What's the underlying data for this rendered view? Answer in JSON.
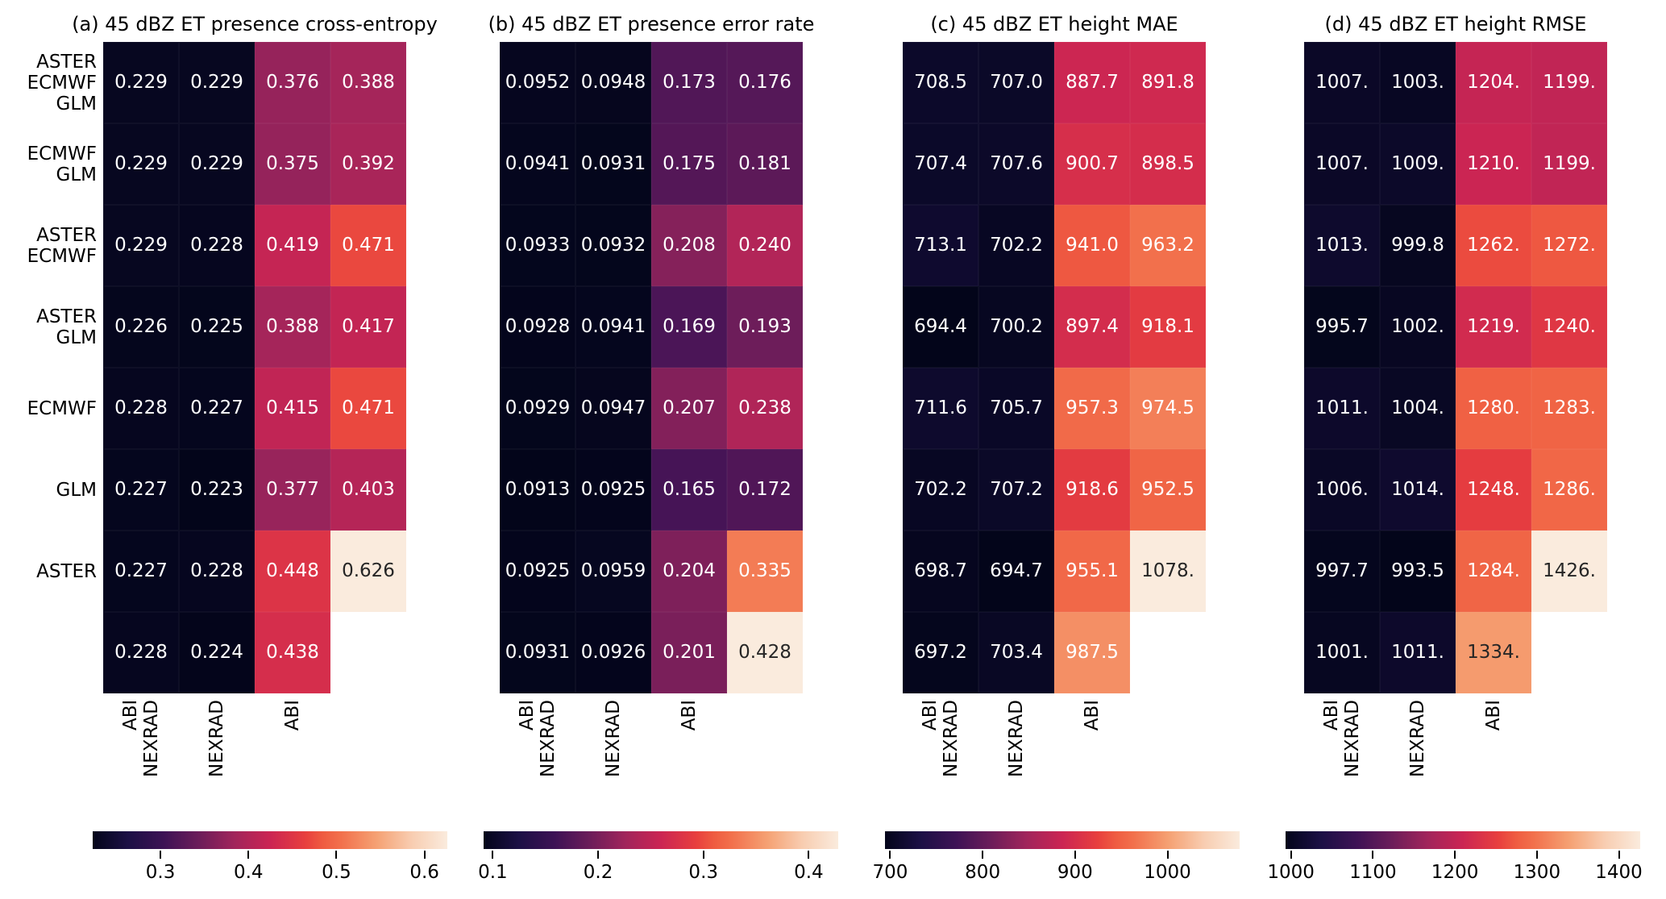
{
  "figure": {
    "background": "#ffffff",
    "text_color": "#000000",
    "colormap": {
      "name": "rocket",
      "stops": [
        {
          "t": 0.0,
          "color": "#03051A"
        },
        {
          "t": 0.1,
          "color": "#1C1045"
        },
        {
          "t": 0.2,
          "color": "#3D1255"
        },
        {
          "t": 0.3,
          "color": "#6C1D5A"
        },
        {
          "t": 0.4,
          "color": "#A1255B"
        },
        {
          "t": 0.5,
          "color": "#CB2553"
        },
        {
          "t": 0.6,
          "color": "#E83F3E"
        },
        {
          "t": 0.65,
          "color": "#EF5C41"
        },
        {
          "t": 0.7,
          "color": "#F2704C"
        },
        {
          "t": 0.8,
          "color": "#F5A173"
        },
        {
          "t": 0.9,
          "color": "#F8CDB1"
        },
        {
          "t": 1.0,
          "color": "#FAEBDD"
        }
      ],
      "annotation_dark": "#262626",
      "annotation_light": "#FFFFFF"
    }
  },
  "chart_data": [
    {
      "type": "heatmap",
      "title": "(a) 45 dBZ ET presence cross-entropy",
      "row_labels": [
        "ASTER\nECMWF\nGLM",
        "ECMWF\nGLM",
        "ASTER\nECMWF",
        "ASTER\nGLM",
        "ECMWF",
        "GLM",
        "ASTER",
        ""
      ],
      "col_labels": [
        "ABI\nNEXRAD",
        "NEXRAD",
        "ABI",
        ""
      ],
      "cells": [
        [
          "0.229",
          "0.229",
          "0.376",
          "0.388"
        ],
        [
          "0.229",
          "0.229",
          "0.375",
          "0.392"
        ],
        [
          "0.229",
          "0.228",
          "0.419",
          "0.471"
        ],
        [
          "0.226",
          "0.225",
          "0.388",
          "0.417"
        ],
        [
          "0.228",
          "0.227",
          "0.415",
          "0.471"
        ],
        [
          "0.227",
          "0.223",
          "0.377",
          "0.403"
        ],
        [
          "0.227",
          "0.228",
          "0.448",
          "0.626"
        ],
        [
          "0.228",
          "0.224",
          "0.438",
          null
        ]
      ],
      "colorbar_ticks": [
        "0.3",
        "0.4",
        "0.5",
        "0.6"
      ]
    },
    {
      "type": "heatmap",
      "title": "(b) 45 dBZ ET presence error rate",
      "col_labels": [
        "ABI\nNEXRAD",
        "NEXRAD",
        "ABI",
        ""
      ],
      "cells": [
        [
          "0.0952",
          "0.0948",
          "0.173",
          "0.176"
        ],
        [
          "0.0941",
          "0.0931",
          "0.175",
          "0.181"
        ],
        [
          "0.0933",
          "0.0932",
          "0.208",
          "0.240"
        ],
        [
          "0.0928",
          "0.0941",
          "0.169",
          "0.193"
        ],
        [
          "0.0929",
          "0.0947",
          "0.207",
          "0.238"
        ],
        [
          "0.0913",
          "0.0925",
          "0.165",
          "0.172"
        ],
        [
          "0.0925",
          "0.0959",
          "0.204",
          "0.335"
        ],
        [
          "0.0931",
          "0.0926",
          "0.201",
          "0.428"
        ]
      ],
      "colorbar_ticks": [
        "0.1",
        "0.2",
        "0.3",
        "0.4"
      ]
    },
    {
      "type": "heatmap",
      "title": "(c) 45 dBZ ET height MAE",
      "col_labels": [
        "ABI\nNEXRAD",
        "NEXRAD",
        "ABI",
        ""
      ],
      "cells": [
        [
          "708.5",
          "707.0",
          "887.7",
          "891.8"
        ],
        [
          "707.4",
          "707.6",
          "900.7",
          "898.5"
        ],
        [
          "713.1",
          "702.2",
          "941.0",
          "963.2"
        ],
        [
          "694.4",
          "700.2",
          "897.4",
          "918.1"
        ],
        [
          "711.6",
          "705.7",
          "957.3",
          "974.5"
        ],
        [
          "702.2",
          "707.2",
          "918.6",
          "952.5"
        ],
        [
          "698.7",
          "694.7",
          "955.1",
          "1078."
        ],
        [
          "697.2",
          "703.4",
          "987.5",
          null
        ]
      ],
      "colorbar_ticks": [
        "700",
        "800",
        "900",
        "1000"
      ]
    },
    {
      "type": "heatmap",
      "title": "(d) 45 dBZ ET height RMSE",
      "col_labels": [
        "ABI\nNEXRAD",
        "NEXRAD",
        "ABI",
        ""
      ],
      "cells": [
        [
          "1007.",
          "1003.",
          "1204.",
          "1199."
        ],
        [
          "1007.",
          "1009.",
          "1210.",
          "1199."
        ],
        [
          "1013.",
          "999.8",
          "1262.",
          "1272."
        ],
        [
          "995.7",
          "1002.",
          "1219.",
          "1240."
        ],
        [
          "1011.",
          "1004.",
          "1280.",
          "1283."
        ],
        [
          "1006.",
          "1014.",
          "1248.",
          "1286."
        ],
        [
          "997.7",
          "993.5",
          "1284.",
          "1426."
        ],
        [
          "1001.",
          "1011.",
          "1334.",
          null
        ]
      ],
      "colorbar_ticks": [
        "1000",
        "1100",
        "1200",
        "1300",
        "1400"
      ]
    }
  ]
}
